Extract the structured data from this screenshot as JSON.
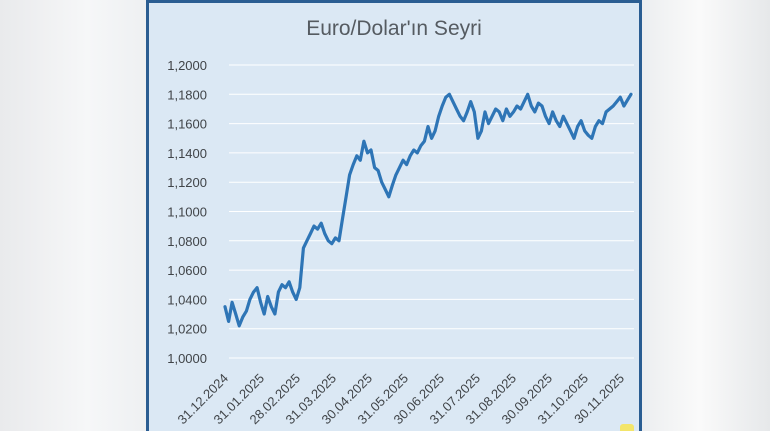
{
  "chart_data": {
    "type": "line",
    "title": "Euro/Dolar'ın Seyri",
    "xlabel": "",
    "ylabel": "",
    "ylim": [
      1.0,
      1.2
    ],
    "ytick_labels": [
      "1,0000",
      "1,0200",
      "1,0400",
      "1,0600",
      "1,0800",
      "1,1000",
      "1,1200",
      "1,1400",
      "1,1600",
      "1,1800",
      "1,2000"
    ],
    "xtick_labels": [
      "31.12.2024",
      "31.01.2025",
      "28.02.2025",
      "31.03.2025",
      "30.04.2025",
      "31.05.2025",
      "30.06.2025",
      "31.07.2025",
      "31.08.2025",
      "30.09.2025",
      "31.10.2025",
      "30.11.2025"
    ],
    "grid": "horizontal",
    "legend": "none",
    "color": "#2e75b6",
    "series": [
      {
        "values": [
          1.035,
          1.025,
          1.038,
          1.03,
          1.022,
          1.028,
          1.032,
          1.04,
          1.045,
          1.048,
          1.038,
          1.03,
          1.042,
          1.035,
          1.03,
          1.045,
          1.05,
          1.048,
          1.052,
          1.045,
          1.04,
          1.048,
          1.075,
          1.08,
          1.085,
          1.09,
          1.088,
          1.092,
          1.085,
          1.08,
          1.078,
          1.082,
          1.08,
          1.095,
          1.11,
          1.125,
          1.132,
          1.138,
          1.135,
          1.148,
          1.14,
          1.142,
          1.13,
          1.128,
          1.12,
          1.115,
          1.11,
          1.118,
          1.125,
          1.13,
          1.135,
          1.132,
          1.138,
          1.142,
          1.14,
          1.145,
          1.148,
          1.158,
          1.15,
          1.155,
          1.165,
          1.172,
          1.178,
          1.18,
          1.175,
          1.17,
          1.165,
          1.162,
          1.168,
          1.175,
          1.168,
          1.15,
          1.155,
          1.168,
          1.16,
          1.165,
          1.17,
          1.168,
          1.162,
          1.17,
          1.165,
          1.168,
          1.172,
          1.17,
          1.175,
          1.18,
          1.172,
          1.168,
          1.174,
          1.172,
          1.165,
          1.16,
          1.168,
          1.162,
          1.158,
          1.165,
          1.16,
          1.155,
          1.15,
          1.158,
          1.162,
          1.155,
          1.152,
          1.15,
          1.158,
          1.162,
          1.16,
          1.168,
          1.17,
          1.172,
          1.175,
          1.178,
          1.172,
          1.176,
          1.18
        ]
      }
    ]
  }
}
